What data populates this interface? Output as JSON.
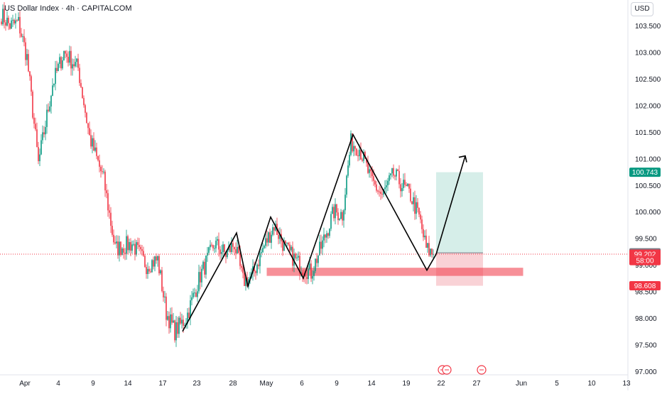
{
  "header": {
    "title": "US Dollar Index · 4h · CAPITALCOM",
    "currency_button": "USD"
  },
  "colors": {
    "up": "#089981",
    "down": "#f23645",
    "zone": "#f23645",
    "target": "#d1ece7",
    "stop": "#f8cdd2",
    "last_price": "#f23645",
    "grey_tag": "#787b86",
    "green_tag": "#089981",
    "line": "#000000"
  },
  "chart_data": {
    "type": "candlestick",
    "title": "US Dollar Index · 4h · CAPITALCOM",
    "ylim": [
      97.0,
      103.8
    ],
    "y_ticks": [
      "103.500",
      "103.000",
      "102.500",
      "102.000",
      "101.500",
      "101.000",
      "100.500",
      "100.000",
      "99.500",
      "99.000",
      "98.500",
      "98.000",
      "97.500",
      "97.000"
    ],
    "x_ticks": [
      "Apr",
      "4",
      "9",
      "14",
      "17",
      "23",
      "28",
      "May",
      "6",
      "9",
      "14",
      "19",
      "22",
      "27",
      "Jun",
      "5",
      "10",
      "13"
    ],
    "series_waypoints": [
      {
        "i": 0,
        "v": 103.7
      },
      {
        "i": 6,
        "v": 103.5
      },
      {
        "i": 12,
        "v": 103.55
      },
      {
        "i": 18,
        "v": 102.9
      },
      {
        "i": 26,
        "v": 100.9
      },
      {
        "i": 36,
        "v": 102.4
      },
      {
        "i": 44,
        "v": 103.0
      },
      {
        "i": 54,
        "v": 102.7
      },
      {
        "i": 62,
        "v": 101.4
      },
      {
        "i": 72,
        "v": 100.6
      },
      {
        "i": 80,
        "v": 99.3
      },
      {
        "i": 92,
        "v": 99.4
      },
      {
        "i": 102,
        "v": 99.0
      },
      {
        "i": 110,
        "v": 99.1
      },
      {
        "i": 116,
        "v": 98.1
      },
      {
        "i": 122,
        "v": 97.75
      },
      {
        "i": 130,
        "v": 98.0
      },
      {
        "i": 140,
        "v": 98.8
      },
      {
        "i": 150,
        "v": 99.4
      },
      {
        "i": 158,
        "v": 99.2
      },
      {
        "i": 164,
        "v": 99.4
      },
      {
        "i": 170,
        "v": 98.7
      },
      {
        "i": 176,
        "v": 98.75
      },
      {
        "i": 184,
        "v": 99.3
      },
      {
        "i": 192,
        "v": 99.75
      },
      {
        "i": 200,
        "v": 99.3
      },
      {
        "i": 210,
        "v": 99.0
      },
      {
        "i": 218,
        "v": 98.85
      },
      {
        "i": 226,
        "v": 99.4
      },
      {
        "i": 234,
        "v": 100.0
      },
      {
        "i": 240,
        "v": 99.95
      },
      {
        "i": 246,
        "v": 101.3
      },
      {
        "i": 252,
        "v": 101.2
      },
      {
        "i": 260,
        "v": 100.6
      },
      {
        "i": 268,
        "v": 100.3
      },
      {
        "i": 276,
        "v": 100.7
      },
      {
        "i": 282,
        "v": 100.5
      },
      {
        "i": 288,
        "v": 100.3
      },
      {
        "i": 294,
        "v": 99.9
      },
      {
        "i": 299,
        "v": 99.3
      },
      {
        "i": 304,
        "v": 99.2
      }
    ],
    "zigzag_lines": [
      {
        "points": [
          [
            122,
            97.75
          ],
          [
            164,
            99.6
          ],
          [
            170,
            98.6
          ],
          [
            188,
            99.9
          ],
          [
            210,
            98.75
          ],
          [
            246,
            101.45
          ],
          [
            296,
            98.9
          ],
          [
            306,
            99.2
          ]
        ]
      },
      {
        "points": [
          [
            306,
            99.2
          ],
          [
            328,
            101.05
          ]
        ],
        "arrow": true
      }
    ],
    "demand_zone": {
      "from_i": 185,
      "to_i": 367,
      "top": 98.94,
      "bottom": 98.8
    },
    "position": {
      "from_i": 304,
      "to_i": 338,
      "entry": 99.227,
      "target": 100.743,
      "stop": 98.608
    },
    "last_price": 99.202,
    "price_tags": [
      {
        "value": "100.743",
        "price": 100.743,
        "kind": "green"
      },
      {
        "value": "99.227",
        "price": 99.227,
        "kind": "grey"
      },
      {
        "value": "99.202",
        "price": 99.202,
        "kind": "red"
      },
      {
        "value": "58:00",
        "price": 99.08,
        "kind": "red"
      },
      {
        "value": "98.608",
        "price": 98.608,
        "kind": "red"
      }
    ]
  }
}
